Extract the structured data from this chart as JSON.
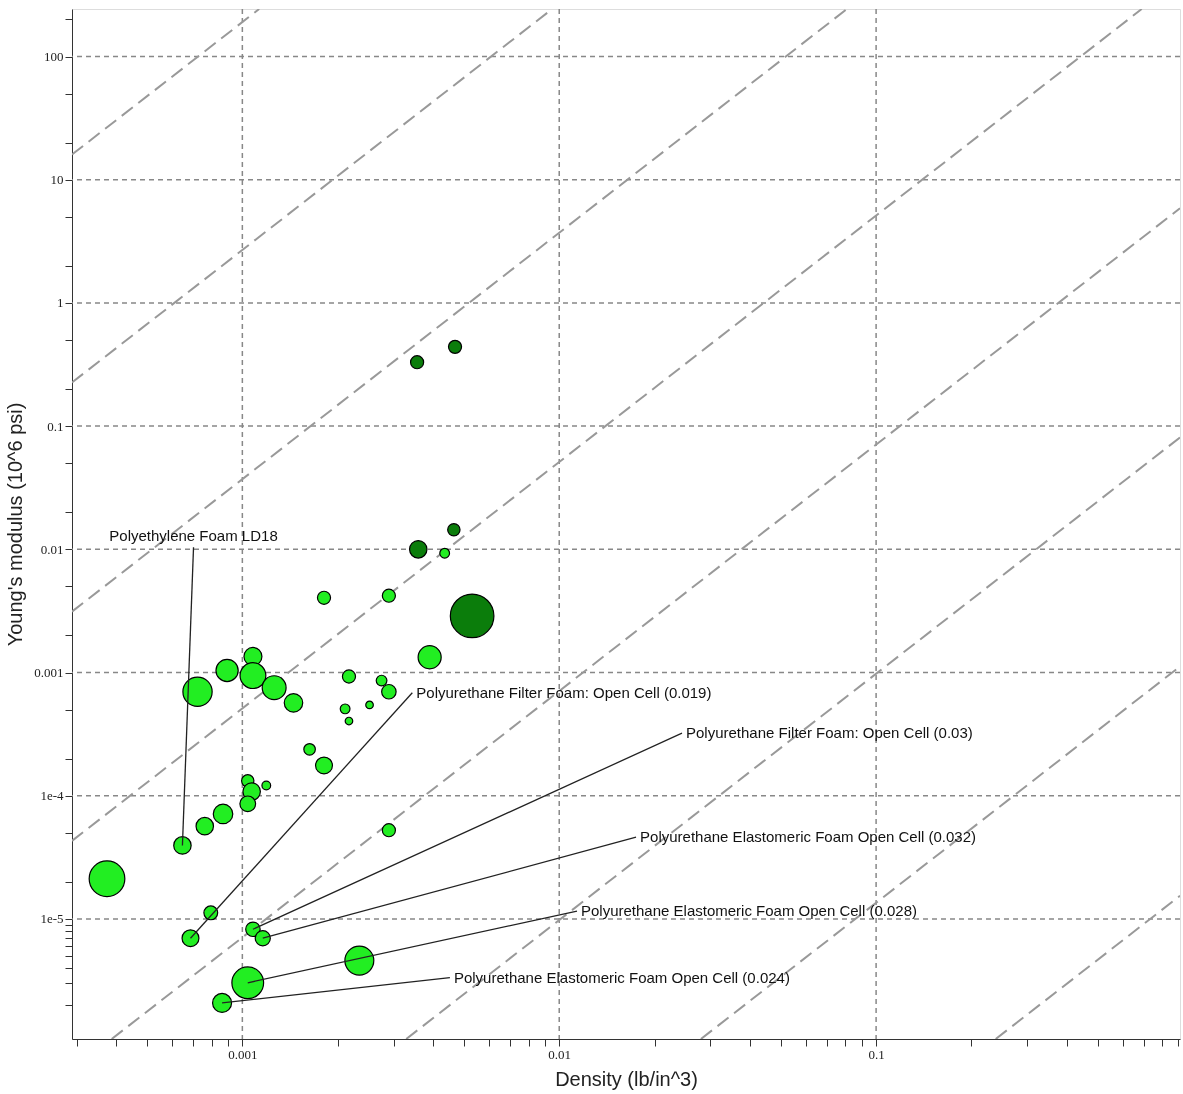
{
  "chart_data": {
    "type": "bubble",
    "xlabel": "Density (lb/in^3)",
    "ylabel": "Young's modulus (10^6 psi)",
    "log": "xy",
    "grid": true,
    "line_style": "dashed",
    "xlim": [
      0.00029,
      0.91
    ],
    "ylim": [
      1.06e-06,
      243
    ],
    "xticks": [
      {
        "value": 0.0003,
        "label": null
      },
      {
        "value": 0.0004,
        "label": null
      },
      {
        "value": 0.0005,
        "label": null
      },
      {
        "value": 0.0006,
        "label": null
      },
      {
        "value": 0.0007,
        "label": null
      },
      {
        "value": 0.0008,
        "label": null
      },
      {
        "value": 0.0009,
        "label": null
      },
      0.001,
      {
        "value": 0.002,
        "label": null
      },
      {
        "value": 0.003,
        "label": null
      },
      {
        "value": 0.004,
        "label": null
      },
      {
        "value": 0.005,
        "label": null
      },
      {
        "value": 0.006,
        "label": null
      },
      {
        "value": 0.007,
        "label": null
      },
      {
        "value": 0.008,
        "label": null
      },
      {
        "value": 0.009,
        "label": null
      },
      0.01,
      {
        "value": 0.02,
        "label": null
      },
      {
        "value": 0.03,
        "label": null
      },
      {
        "value": 0.04,
        "label": null
      },
      {
        "value": 0.05,
        "label": null
      },
      {
        "value": 0.06,
        "label": null
      },
      {
        "value": 0.07,
        "label": null
      },
      {
        "value": 0.08,
        "label": null
      },
      {
        "value": 0.09,
        "label": null
      },
      0.1,
      {
        "value": 0.2,
        "label": null
      },
      {
        "value": 0.3,
        "label": null
      },
      {
        "value": 0.4,
        "label": null
      },
      {
        "value": 0.5,
        "label": null
      },
      {
        "value": 0.6,
        "label": null
      },
      {
        "value": 0.7,
        "label": null
      },
      {
        "value": 0.8,
        "label": null
      },
      {
        "value": 0.9,
        "label": null
      }
    ],
    "yticks": [
      {
        "value": 2e-06,
        "label": null
      },
      {
        "value": 3e-06,
        "label": null
      },
      {
        "value": 4e-06,
        "label": null
      },
      {
        "value": 5e-06,
        "label": null
      },
      {
        "value": 6e-06,
        "label": null
      },
      {
        "value": 7e-06,
        "label": null
      },
      {
        "value": 8e-06,
        "label": null
      },
      {
        "value": 9e-06,
        "label": null
      },
      {
        "value": 1e-05,
        "label": "1e-5"
      },
      {
        "value": 2e-05,
        "label": null
      },
      {
        "value": 5e-05,
        "label": null
      },
      {
        "value": 0.0001,
        "label": "1e-4"
      },
      {
        "value": 0.0002,
        "label": null
      },
      {
        "value": 0.0005,
        "label": null
      },
      0.001,
      {
        "value": 0.002,
        "label": null
      },
      {
        "value": 0.005,
        "label": null
      },
      0.01,
      {
        "value": 0.02,
        "label": null
      },
      {
        "value": 0.05,
        "label": null
      },
      0.1,
      {
        "value": 0.2,
        "label": null
      },
      {
        "value": 0.5,
        "label": null
      },
      1,
      {
        "value": 2,
        "label": null
      },
      {
        "value": 5,
        "label": null
      },
      10,
      {
        "value": 20,
        "label": null
      },
      {
        "value": 50,
        "label": null
      },
      100,
      {
        "value": 200,
        "label": null
      }
    ],
    "series": [
      {
        "type": "line",
        "marker": "none",
        "color": "#999999",
        "x": [
          0.00029,
          0.00113
        ],
        "values": [
          16.0,
          243
        ]
      },
      {
        "type": "line",
        "marker": "none",
        "color": "#999999",
        "x": [
          0.00029,
          0.0095
        ],
        "values": [
          0.226,
          243
        ]
      },
      {
        "type": "line",
        "marker": "none",
        "color": "#999999",
        "x": [
          0.00029,
          0.0809
        ],
        "values": [
          0.00312,
          243
        ]
      },
      {
        "type": "line",
        "marker": "none",
        "color": "#999999",
        "x": [
          0.00029,
          0.689
        ],
        "values": [
          4.3e-05,
          243
        ]
      },
      {
        "type": "line",
        "marker": "none",
        "color": "#999999",
        "x": [
          0.000387,
          0.91
        ],
        "values": [
          1.06e-06,
          5.86
        ]
      },
      {
        "type": "line",
        "marker": "none",
        "color": "#999999",
        "x": [
          0.00329,
          0.91
        ],
        "values": [
          1.06e-06,
          0.0809
        ]
      },
      {
        "type": "line",
        "marker": "none",
        "color": "#999999",
        "x": [
          0.028,
          0.91
        ],
        "values": [
          1.06e-06,
          0.00112
        ]
      },
      {
        "type": "line",
        "marker": "none",
        "color": "#999999",
        "x": [
          0.2385,
          0.91
        ],
        "values": [
          1.06e-06,
          1.54e-05
        ]
      },
      {
        "marker": "circle",
        "color": "#0b7d0b",
        "x": [
          0.00356,
          0.00469,
          0.00359,
          0.00465,
          0.00531
        ],
        "values": [
          0.33,
          0.44,
          0.01,
          0.0144,
          0.00288
        ],
        "sizes": [
          0.09,
          0.09,
          0.16,
          0.08,
          1
        ]
      },
      {
        "marker": "circle",
        "color": "#22ee22",
        "x": [
          0.00181,
          0.0029,
          0.00435,
          0.0039,
          0.000722,
          0.000895,
          0.00108,
          0.00108,
          0.00126,
          0.00145,
          0.00217,
          0.00275,
          0.0029,
          0.00252,
          0.00211,
          0.00217,
          0.00163,
          0.00181,
          0.00104,
          0.00119,
          0.00107,
          0.00104,
          0.000869,
          0.000761,
          0.000647,
          0.0029,
          0.000374,
          0.000795,
          0.000686,
          0.00108,
          0.00116,
          0.00234,
          0.00104,
          0.000863
        ],
        "values": [
          0.00404,
          0.0042,
          0.0093,
          0.00133,
          0.000698,
          0.00104,
          0.00135,
          0.000944,
          0.000753,
          0.000567,
          0.000928,
          0.00086,
          0.000698,
          0.000546,
          0.000507,
          0.000404,
          0.000238,
          0.000176,
          0.000132,
          0.000121,
          0.000108,
          8.59e-05,
          7.11e-05,
          5.66e-05,
          3.95e-05,
          5.25e-05,
          2.12e-05,
          1.12e-05,
          6.97e-06,
          8.24e-06,
          6.97e-06,
          4.59e-06,
          3.03e-06,
          2.08e-06
        ],
        "sizes": [
          0.09,
          0.09,
          0.05,
          0.28,
          0.45,
          0.26,
          0.17,
          0.35,
          0.3,
          0.18,
          0.09,
          0.06,
          0.11,
          0.03,
          0.05,
          0.03,
          0.07,
          0.15,
          0.08,
          0.04,
          0.16,
          0.13,
          0.2,
          0.16,
          0.16,
          0.09,
          0.67,
          0.1,
          0.15,
          0.11,
          0.12,
          0.44,
          0.53,
          0.19
        ]
      }
    ],
    "annotations": [
      {
        "text": "Polyethylene Foam LD18",
        "x": 0.000647,
        "y": 3.95e-05
      },
      {
        "text": "Polyurethane Filter Foam: Open Cell (0.019)",
        "x": 0.000686,
        "y": 6.97e-06
      },
      {
        "text": "Polyurethane Filter Foam: Open Cell (0.03)",
        "x": 0.00108,
        "y": 8.24e-06
      },
      {
        "text": "Polyurethane Elastomeric Foam Open Cell (0.032)",
        "x": 0.00116,
        "y": 6.97e-06
      },
      {
        "text": "Polyurethane Elastomeric Foam Open Cell (0.028)",
        "x": 0.00104,
        "y": 3.03e-06
      },
      {
        "text": "Polyurethane Elastomeric Foam Open Cell (0.024)",
        "x": 0.000863,
        "y": 2.08e-06
      }
    ]
  }
}
